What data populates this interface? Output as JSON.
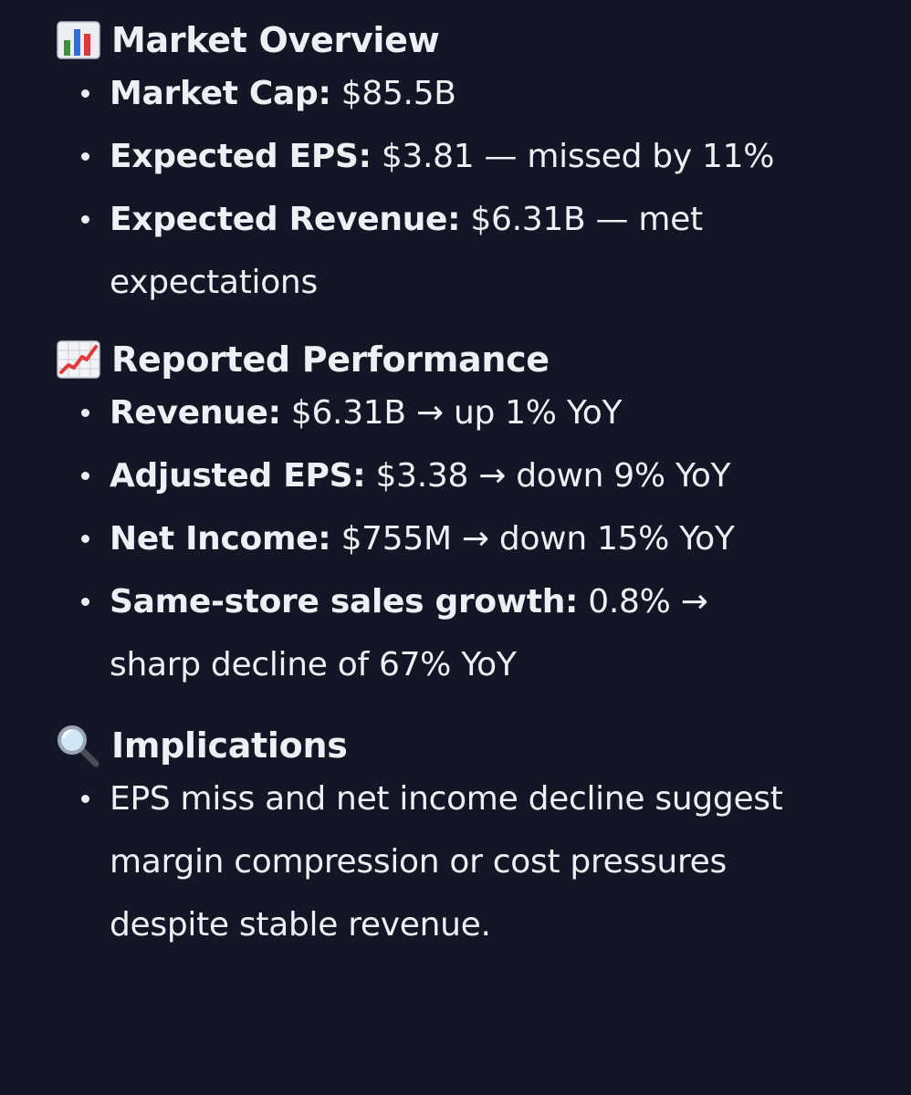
{
  "sections": [
    {
      "icon": "bar-chart-icon",
      "title": "Market Overview",
      "items": [
        {
          "label": "Market Cap:",
          "text": " $85.5B"
        },
        {
          "label": "Expected EPS:",
          "text": " $3.81 — missed by 11%"
        },
        {
          "label": "Expected Revenue:",
          "text": " $6.31B — met expectations"
        }
      ]
    },
    {
      "icon": "trending-up-icon",
      "title": "Reported Performance",
      "items": [
        {
          "label": "Revenue:",
          "text": " $6.31B → up 1% YoY"
        },
        {
          "label": "Adjusted EPS:",
          "text": " $3.38 → down 9% YoY"
        },
        {
          "label": "Net Income:",
          "text": " $755M → down 15% YoY"
        },
        {
          "label": "Same-store sales growth:",
          "text": " 0.8% → sharp decline of 67% YoY"
        }
      ]
    },
    {
      "icon": "magnifier-icon",
      "title": "Implications",
      "items": [
        {
          "text": "EPS miss and net income decline suggest margin compression or cost pressures despite stable revenue."
        }
      ]
    }
  ],
  "colors": {
    "background": "#131624",
    "text": "#eef0f5"
  }
}
